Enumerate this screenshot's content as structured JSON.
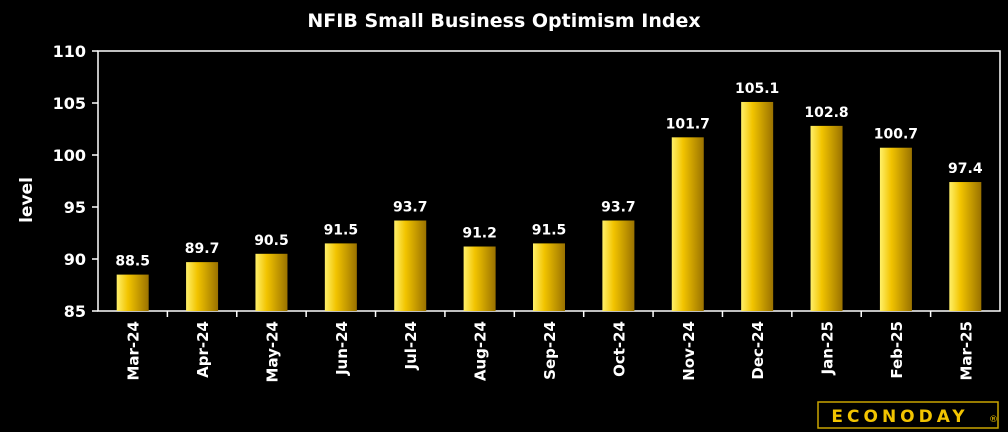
{
  "chart_data": {
    "type": "bar",
    "title": "NFIB Small Business Optimism Index",
    "xlabel": "",
    "ylabel": "level",
    "ylim": [
      85,
      110
    ],
    "yticks": [
      85,
      90,
      95,
      100,
      105,
      110
    ],
    "grid": false,
    "legend": "none",
    "bar_color": "#f2c400",
    "categories": [
      "Mar-24",
      "Apr-24",
      "May-24",
      "Jun-24",
      "Jul-24",
      "Aug-24",
      "Sep-24",
      "Oct-24",
      "Nov-24",
      "Dec-24",
      "Jan-25",
      "Feb-25",
      "Mar-25"
    ],
    "values": [
      88.5,
      89.7,
      90.5,
      91.5,
      93.7,
      91.2,
      91.5,
      93.7,
      101.7,
      105.1,
      102.8,
      100.7,
      97.4
    ],
    "data_labels": [
      "88.5",
      "89.7",
      "90.5",
      "91.5",
      "93.7",
      "91.2",
      "91.5",
      "93.7",
      "101.7",
      "105.1",
      "102.8",
      "100.7",
      "97.4"
    ]
  },
  "branding": {
    "logo_text": "ECONODAY",
    "logo_mark": "®",
    "logo_color": "#f2c400"
  }
}
